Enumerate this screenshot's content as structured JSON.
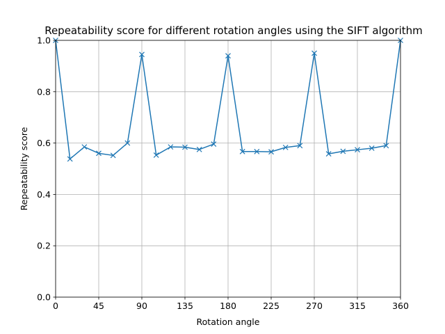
{
  "chart_data": {
    "type": "line",
    "title": "Repeatability score for different rotation angles using the SIFT algorithm",
    "xlabel": "Rotation angle",
    "ylabel": "Repeatability score",
    "xlim": [
      0,
      360
    ],
    "ylim": [
      0,
      1.0
    ],
    "xticks": [
      0,
      45,
      90,
      135,
      180,
      225,
      270,
      315,
      360
    ],
    "yticks": [
      0.0,
      0.2,
      0.4,
      0.6,
      0.8,
      1.0
    ],
    "xtick_labels": [
      "0",
      "45",
      "90",
      "135",
      "180",
      "225",
      "270",
      "315",
      "360"
    ],
    "ytick_labels": [
      "0.0",
      "0.2",
      "0.4",
      "0.6",
      "0.8",
      "1.0"
    ],
    "grid": true,
    "marker": "x",
    "colors": {
      "series": "#1f77b4"
    },
    "series": [
      {
        "x": [
          0,
          15,
          30,
          45,
          60,
          75,
          90,
          105,
          120,
          135,
          150,
          165,
          180,
          195,
          210,
          225,
          240,
          255,
          270,
          285,
          300,
          315,
          330,
          345,
          360
        ],
        "y": [
          1.0,
          0.538,
          0.585,
          0.56,
          0.552,
          0.6,
          0.945,
          0.553,
          0.585,
          0.584,
          0.575,
          0.596,
          0.94,
          0.567,
          0.567,
          0.566,
          0.583,
          0.59,
          0.95,
          0.558,
          0.568,
          0.574,
          0.58,
          0.59,
          1.0
        ]
      }
    ]
  }
}
